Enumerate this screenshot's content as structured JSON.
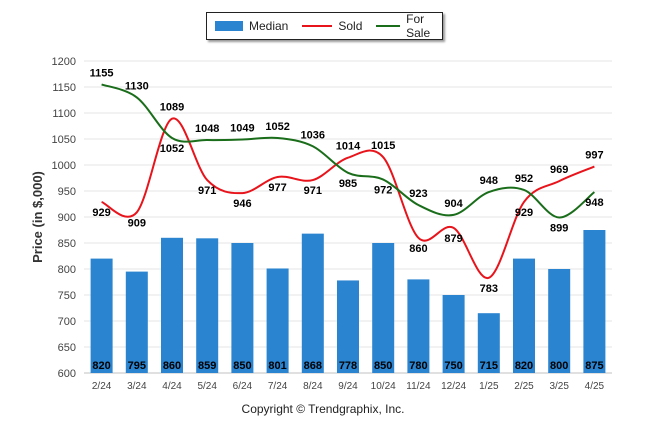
{
  "chart_data": {
    "type": "bar",
    "categories": [
      "2/24",
      "3/24",
      "4/24",
      "5/24",
      "6/24",
      "7/24",
      "8/24",
      "9/24",
      "10/24",
      "11/24",
      "12/24",
      "1/25",
      "2/25",
      "3/25",
      "4/25"
    ],
    "series": [
      {
        "name": "Median",
        "type": "bar",
        "values": [
          820,
          795,
          860,
          859,
          850,
          801,
          868,
          778,
          850,
          780,
          750,
          715,
          820,
          800,
          875
        ]
      },
      {
        "name": "Sold",
        "type": "line",
        "values": [
          929,
          909,
          1089,
          971,
          946,
          977,
          971,
          1014,
          1015,
          860,
          879,
          783,
          929,
          969,
          997
        ]
      },
      {
        "name": "For Sale",
        "type": "line",
        "values": [
          1155,
          1130,
          1052,
          1048,
          1049,
          1052,
          1036,
          985,
          972,
          923,
          904,
          948,
          952,
          899,
          948
        ]
      }
    ],
    "ylabel": "Price (in $,000)",
    "xlabel": "",
    "ylim": [
      600,
      1200
    ],
    "yticks": [
      600,
      650,
      700,
      750,
      800,
      850,
      900,
      950,
      1000,
      1050,
      1100,
      1150,
      1200
    ],
    "legend": "top-center",
    "grid": true,
    "colors": {
      "Median": "#2a84d0",
      "Sold": "#e8141c",
      "For Sale": "#1a6d1a"
    }
  },
  "footer": {
    "copyright": "Copyright © Trendgraphix, Inc."
  }
}
